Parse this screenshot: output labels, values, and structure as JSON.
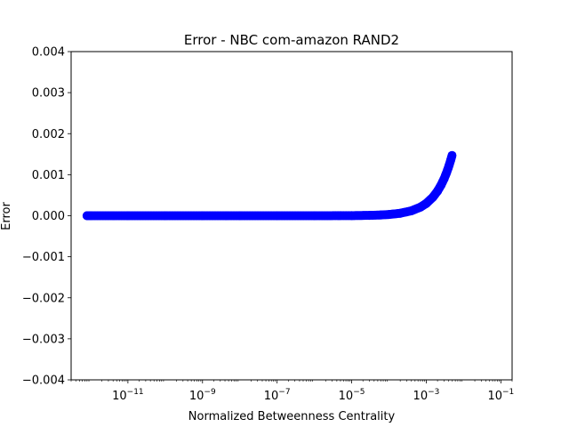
{
  "chart_data": {
    "type": "scatter",
    "title": "Error - NBC com-amazon RAND2",
    "xlabel": "Normalized Betweenness Centrality",
    "ylabel": "Error",
    "xscale": "log",
    "xlim": [
      3e-13,
      0.2
    ],
    "ylim": [
      -0.004,
      0.004
    ],
    "grid": false,
    "marker_color": "#0000ff",
    "x_ticks": [
      {
        "value": 1e-11,
        "base": "10",
        "exp": "−11"
      },
      {
        "value": 1e-09,
        "base": "10",
        "exp": "−9"
      },
      {
        "value": 1e-07,
        "base": "10",
        "exp": "−7"
      },
      {
        "value": 1e-05,
        "base": "10",
        "exp": "−5"
      },
      {
        "value": 0.001,
        "base": "10",
        "exp": "−3"
      },
      {
        "value": 0.1,
        "base": "10",
        "exp": "−1"
      }
    ],
    "y_ticks": [
      {
        "value": 0.004,
        "label": "0.004"
      },
      {
        "value": 0.003,
        "label": "0.003"
      },
      {
        "value": 0.002,
        "label": "0.002"
      },
      {
        "value": 0.001,
        "label": "0.001"
      },
      {
        "value": 0.0,
        "label": "0.000"
      },
      {
        "value": -0.001,
        "label": "−0.001"
      },
      {
        "value": -0.002,
        "label": "−0.002"
      },
      {
        "value": -0.003,
        "label": "−0.003"
      },
      {
        "value": -0.004,
        "label": "−0.004"
      }
    ],
    "series": [
      {
        "x": [
          8e-13,
          1e-12,
          1e-11,
          1e-10,
          1e-09,
          1e-08,
          1e-07,
          1e-06,
          1e-05,
          3e-05,
          6e-05,
          0.0001,
          0.0002,
          0.0004,
          0.0007,
          0.001,
          0.0015,
          0.002,
          0.0025,
          0.003,
          0.0035,
          0.004,
          0.0045,
          0.0049
        ],
        "y": [
          0.0,
          0.0,
          0.0,
          0.0,
          0.0,
          0.0,
          0.0,
          0.0,
          3e-06,
          9e-06,
          1.8e-05,
          3e-05,
          6e-05,
          0.00012,
          0.00021,
          0.0003,
          0.00045,
          0.0006,
          0.00075,
          0.0009,
          0.00105,
          0.0012,
          0.00135,
          0.00147
        ]
      }
    ]
  }
}
